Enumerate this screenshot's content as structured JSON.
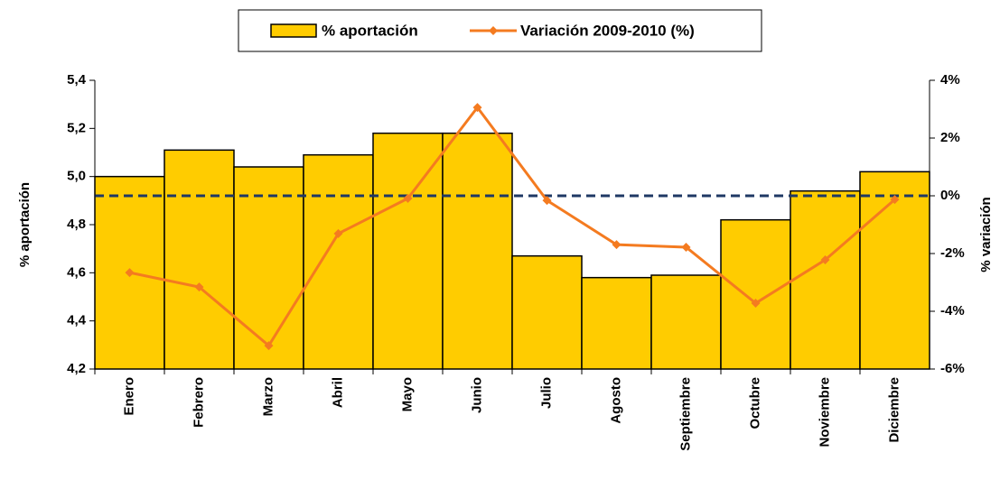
{
  "chart_data": {
    "type": "bar",
    "y_label": "% aportación",
    "y2_label": "% variación",
    "categories": [
      "Enero",
      "Febrero",
      "Marzo",
      "Abril",
      "Mayo",
      "Junio",
      "Julio",
      "Agosto",
      "Septiembre",
      "Octubre",
      "Noviembre",
      "Diciembre"
    ],
    "series": [
      {
        "name": "% aportación",
        "type": "bar",
        "color": "#ffcc00",
        "values": [
          5.0,
          5.11,
          5.04,
          5.09,
          5.18,
          5.18,
          4.67,
          4.58,
          4.59,
          4.82,
          4.94,
          5.02
        ]
      },
      {
        "name": "Variación 2009-2010 (%)",
        "type": "line",
        "color": "#f47b20",
        "axis": "y2",
        "values": [
          -2.66,
          -3.16,
          -5.19,
          -1.31,
          -0.09,
          3.06,
          -0.16,
          -1.69,
          -1.78,
          -3.72,
          -2.22,
          -0.13
        ]
      }
    ],
    "ylim": [
      4.2,
      5.4
    ],
    "yticks": [
      {
        "value": 4.2,
        "label": "4,2"
      },
      {
        "value": 4.4,
        "label": "4,4"
      },
      {
        "value": 4.6,
        "label": "4,6"
      },
      {
        "value": 4.8,
        "label": "4,8"
      },
      {
        "value": 5.0,
        "label": "5,0"
      },
      {
        "value": 5.2,
        "label": "5,2"
      },
      {
        "value": 5.4,
        "label": "5,4"
      }
    ],
    "y2lim": [
      -6,
      4
    ],
    "y2ticks": [
      {
        "value": -6,
        "label": "-6%"
      },
      {
        "value": -4,
        "label": "-4%"
      },
      {
        "value": -2,
        "label": "-2%"
      },
      {
        "value": 0,
        "label": "0%"
      },
      {
        "value": 2,
        "label": "2%"
      },
      {
        "value": 4,
        "label": "4%"
      }
    ],
    "reference_line": {
      "axis": "y2",
      "value": 0,
      "color": "#1f3864"
    },
    "legend": "top"
  }
}
